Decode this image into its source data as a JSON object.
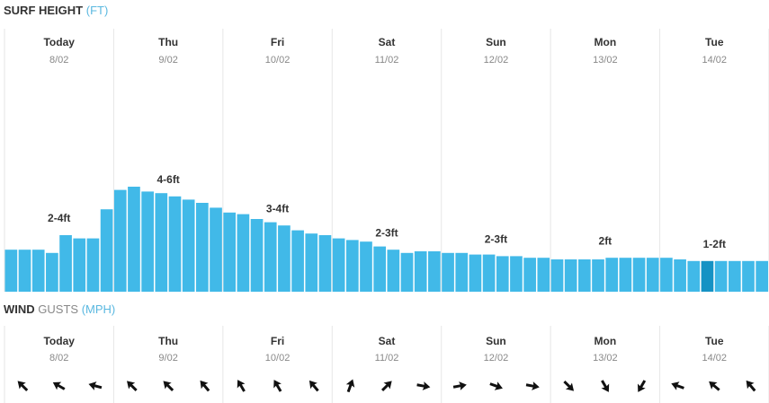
{
  "surf": {
    "title": "SURF HEIGHT",
    "unit": "(FT)",
    "days": [
      {
        "name": "Today",
        "date": "8/02",
        "label": "2-4ft"
      },
      {
        "name": "Thu",
        "date": "9/02",
        "label": "4-6ft"
      },
      {
        "name": "Fri",
        "date": "10/02",
        "label": "3-4ft"
      },
      {
        "name": "Sat",
        "date": "11/02",
        "label": "2-3ft"
      },
      {
        "name": "Sun",
        "date": "12/02",
        "label": "2-3ft"
      },
      {
        "name": "Mon",
        "date": "13/02",
        "label": "2ft"
      },
      {
        "name": "Tue",
        "date": "14/02",
        "label": "1-2ft"
      }
    ],
    "values": [
      2.6,
      2.6,
      2.6,
      2.4,
      3.5,
      3.3,
      3.3,
      5.1,
      6.3,
      6.5,
      6.2,
      6.1,
      5.9,
      5.7,
      5.5,
      5.2,
      4.9,
      4.8,
      4.5,
      4.3,
      4.1,
      3.8,
      3.6,
      3.5,
      3.3,
      3.2,
      3.1,
      2.8,
      2.6,
      2.4,
      2.5,
      2.5,
      2.4,
      2.4,
      2.3,
      2.3,
      2.2,
      2.2,
      2.1,
      2.1,
      2.0,
      2.0,
      2.0,
      2.0,
      2.1,
      2.1,
      2.1,
      2.1,
      2.1,
      2.0,
      1.9,
      1.9,
      1.9,
      1.9,
      1.9,
      1.9
    ],
    "color": "#41b9e8",
    "highlight": 51,
    "highlight_color": "#1592c4"
  },
  "wind": {
    "title": "WIND",
    "subtitle": "GUSTS",
    "unit": "(MPH)",
    "directions": [
      315,
      300,
      285,
      315,
      315,
      320,
      330,
      330,
      320,
      20,
      45,
      100,
      80,
      110,
      100,
      135,
      150,
      210,
      290,
      310,
      320
    ],
    "color": "#111"
  }
}
